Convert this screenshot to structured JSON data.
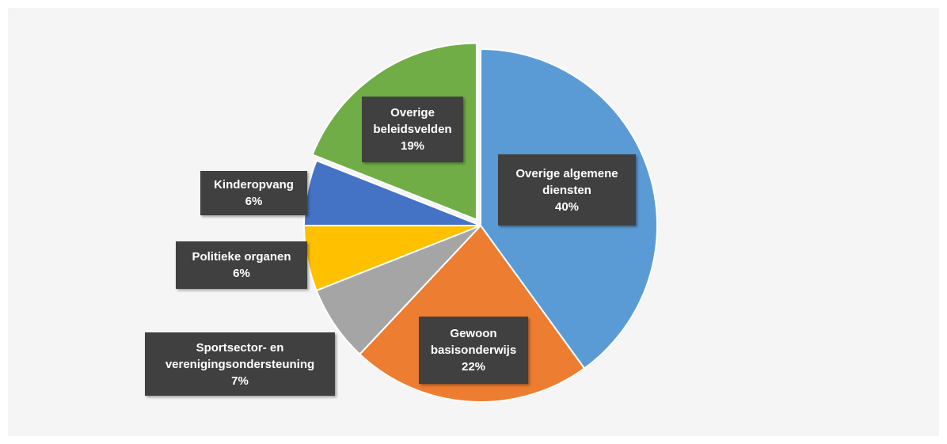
{
  "chart_data": {
    "type": "pie",
    "categories": [
      "Overige algemene diensten",
      "Gewoon basisonderwijs",
      "Sportsector- en verenigingsondersteuning",
      "Politieke organen",
      "Kinderopvang",
      "Overige beleidsvelden"
    ],
    "values": [
      40,
      22,
      7,
      6,
      6,
      19
    ],
    "value_labels": [
      "40%",
      "22%",
      "7%",
      "6%",
      "6%",
      "19%"
    ],
    "colors": [
      "#5b9bd5",
      "#ed7d31",
      "#a5a5a5",
      "#ffc000",
      "#4472c4",
      "#70ad47"
    ]
  }
}
